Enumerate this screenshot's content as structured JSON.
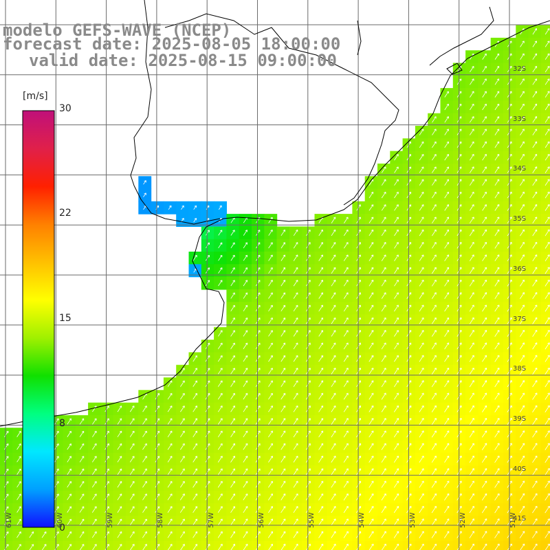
{
  "title": {
    "line1": "modelo GEFS-WAVE (NCEP)",
    "line2": "forecast date: 2025-08-05 18:00:00",
    "line3": "valid date: 2025-08-15 09:00:00"
  },
  "colorbar": {
    "units": "[m/s]",
    "ticks": [
      "30",
      "22",
      "15",
      "8",
      "0"
    ],
    "tick_values": [
      30,
      22,
      15,
      8,
      0
    ],
    "range": [
      0,
      30
    ],
    "colors": [
      "#1010ff",
      "#00a0ff",
      "#00e8ff",
      "#00ff80",
      "#10e000",
      "#a0f000",
      "#ffff00",
      "#ffc000",
      "#ff8000",
      "#ff2000",
      "#e0204a",
      "#c0107a"
    ]
  },
  "grid": {
    "lat_labels": [
      "32S",
      "33S",
      "34S",
      "35S",
      "36S",
      "37S",
      "38S",
      "39S",
      "40S",
      "41S"
    ],
    "lon_labels": [
      "61W",
      "60W",
      "59W",
      "58W",
      "57W",
      "56W",
      "55W",
      "54W",
      "53W",
      "52W",
      "51W"
    ]
  },
  "map_colors": {
    "land": "#ffffff",
    "coastline": "#000000",
    "gridline": "#6a6a6a",
    "arrow": "#ffffff"
  }
}
